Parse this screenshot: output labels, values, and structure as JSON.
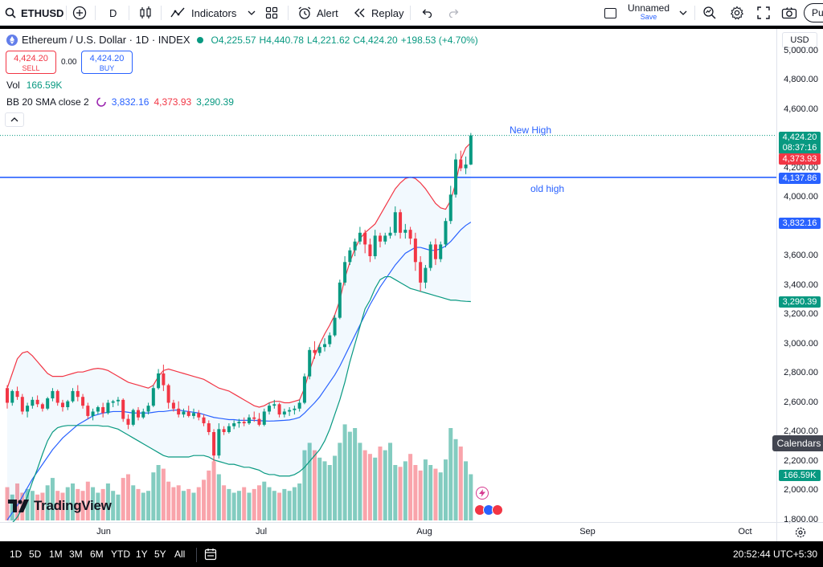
{
  "toolbar": {
    "symbol": "ETHUSD",
    "interval": "D",
    "indicators_label": "Indicators",
    "alert_label": "Alert",
    "replay_label": "Replay",
    "layout_name": "Unnamed",
    "layout_status": "Save",
    "publish_label": "Pu"
  },
  "legend": {
    "title": "Ethereum / U.S. Dollar · 1D · INDEX",
    "open": "O4,225.57",
    "high": "H4,440.78",
    "low": "L4,221.62",
    "close": "C4,424.20",
    "change": "+198.53 (+4.70%)",
    "sell_price": "4,424.20",
    "sell_label": "SELL",
    "spread": "0.00",
    "buy_price": "4,424.20",
    "buy_label": "BUY",
    "vol_label": "Vol",
    "vol_value": "166.59K",
    "bb_label": "BB 20 SMA close 2",
    "bb_mid": "3,832.16",
    "bb_upper": "4,373.93",
    "bb_lower": "3,290.39",
    "collapse_icon": "chevron-up-icon"
  },
  "currency": "USD",
  "annotations": {
    "new_high": "New High",
    "old_high": "old high"
  },
  "price_axis": {
    "ticks": [
      "5,000.00",
      "4,800.00",
      "4,600.00",
      "4,200.00",
      "4,000.00",
      "3,600.00",
      "3,400.00",
      "3,200.00",
      "3,000.00",
      "2,800.00",
      "2,600.00",
      "2,400.00",
      "2,200.00",
      "2,000.00",
      "1,800.00"
    ],
    "tags": {
      "last_price": "4,424.20",
      "countdown": "08:37:16",
      "bb_upper": "4,373.93",
      "old_high": "4,137.86",
      "bb_mid": "3,832.16",
      "bb_lower": "3,290.39",
      "volume": "166.59K"
    },
    "calendars_label": "Calendars"
  },
  "time_axis": {
    "labels": [
      "Jun",
      "Jul",
      "Aug",
      "Sep",
      "Oct"
    ]
  },
  "watermark": "TradingView",
  "bottombar": {
    "ranges": [
      "1D",
      "5D",
      "1M",
      "3M",
      "6M",
      "YTD",
      "1Y",
      "5Y",
      "All"
    ],
    "clock": "20:52:44 UTC+5:30"
  },
  "colors": {
    "up": "#089981",
    "down": "#f23645",
    "bb_mid": "#2962ff",
    "bb_upper": "#f23645",
    "bb_lower": "#089981",
    "level_line": "#2962ff"
  },
  "chart_data": {
    "type": "candlestick",
    "symbol": "ETHUSD",
    "timeframe": "1D",
    "ylim": [
      1800,
      5000
    ],
    "y_scale": "linear",
    "grid": false,
    "horizontal_level": 4137.86,
    "candles": [
      [
        2700,
        2720,
        2560,
        2600
      ],
      [
        2600,
        2690,
        2580,
        2680
      ],
      [
        2680,
        2710,
        2620,
        2640
      ],
      [
        2640,
        2660,
        2520,
        2540
      ],
      [
        2540,
        2600,
        2500,
        2580
      ],
      [
        2580,
        2640,
        2560,
        2620
      ],
      [
        2620,
        2650,
        2570,
        2590
      ],
      [
        2590,
        2600,
        2540,
        2560
      ],
      [
        2560,
        2640,
        2550,
        2630
      ],
      [
        2630,
        2700,
        2610,
        2680
      ],
      [
        2680,
        2690,
        2580,
        2600
      ],
      [
        2600,
        2620,
        2540,
        2570
      ],
      [
        2570,
        2620,
        2550,
        2610
      ],
      [
        2610,
        2700,
        2600,
        2680
      ],
      [
        2680,
        2720,
        2610,
        2640
      ],
      [
        2640,
        2660,
        2560,
        2580
      ],
      [
        2580,
        2600,
        2490,
        2510
      ],
      [
        2510,
        2560,
        2480,
        2540
      ],
      [
        2540,
        2580,
        2520,
        2570
      ],
      [
        2570,
        2600,
        2500,
        2530
      ],
      [
        2530,
        2620,
        2520,
        2600
      ],
      [
        2600,
        2620,
        2570,
        2610
      ],
      [
        2610,
        2640,
        2580,
        2620
      ],
      [
        2620,
        2630,
        2470,
        2490
      ],
      [
        2490,
        2520,
        2420,
        2450
      ],
      [
        2450,
        2560,
        2440,
        2550
      ],
      [
        2550,
        2570,
        2480,
        2500
      ],
      [
        2500,
        2560,
        2490,
        2540
      ],
      [
        2540,
        2600,
        2520,
        2580
      ],
      [
        2580,
        2720,
        2570,
        2700
      ],
      [
        2700,
        2830,
        2690,
        2800
      ],
      [
        2800,
        2860,
        2680,
        2720
      ],
      [
        2720,
        2730,
        2560,
        2600
      ],
      [
        2600,
        2620,
        2540,
        2560
      ],
      [
        2560,
        2610,
        2500,
        2520
      ],
      [
        2520,
        2560,
        2500,
        2540
      ],
      [
        2540,
        2580,
        2500,
        2510
      ],
      [
        2510,
        2560,
        2490,
        2530
      ],
      [
        2530,
        2550,
        2480,
        2500
      ],
      [
        2500,
        2520,
        2440,
        2460
      ],
      [
        2460,
        2480,
        2380,
        2400
      ],
      [
        2400,
        2420,
        2200,
        2240
      ],
      [
        2240,
        2460,
        2220,
        2420
      ],
      [
        2420,
        2440,
        2380,
        2400
      ],
      [
        2400,
        2460,
        2390,
        2440
      ],
      [
        2440,
        2480,
        2420,
        2460
      ],
      [
        2460,
        2490,
        2430,
        2470
      ],
      [
        2470,
        2500,
        2440,
        2460
      ],
      [
        2460,
        2520,
        2450,
        2500
      ],
      [
        2500,
        2540,
        2470,
        2490
      ],
      [
        2490,
        2530,
        2440,
        2450
      ],
      [
        2450,
        2560,
        2440,
        2540
      ],
      [
        2540,
        2600,
        2520,
        2580
      ],
      [
        2580,
        2620,
        2560,
        2590
      ],
      [
        2590,
        2600,
        2500,
        2520
      ],
      [
        2520,
        2560,
        2500,
        2540
      ],
      [
        2540,
        2570,
        2510,
        2550
      ],
      [
        2550,
        2580,
        2520,
        2560
      ],
      [
        2560,
        2620,
        2540,
        2600
      ],
      [
        2600,
        2800,
        2590,
        2780
      ],
      [
        2780,
        2980,
        2760,
        2960
      ],
      [
        2960,
        3020,
        2900,
        2940
      ],
      [
        2940,
        3000,
        2920,
        2980
      ],
      [
        2980,
        3040,
        2950,
        3000
      ],
      [
        3000,
        3080,
        2980,
        3060
      ],
      [
        3060,
        3200,
        3050,
        3180
      ],
      [
        3180,
        3440,
        3170,
        3420
      ],
      [
        3420,
        3600,
        3400,
        3560
      ],
      [
        3560,
        3660,
        3540,
        3640
      ],
      [
        3640,
        3720,
        3600,
        3700
      ],
      [
        3700,
        3800,
        3680,
        3760
      ],
      [
        3760,
        3780,
        3620,
        3680
      ],
      [
        3680,
        3720,
        3560,
        3600
      ],
      [
        3600,
        3780,
        3580,
        3740
      ],
      [
        3740,
        3760,
        3660,
        3700
      ],
      [
        3700,
        3760,
        3680,
        3740
      ],
      [
        3740,
        3800,
        3720,
        3760
      ],
      [
        3760,
        3940,
        3740,
        3900
      ],
      [
        3900,
        3920,
        3720,
        3760
      ],
      [
        3760,
        3820,
        3720,
        3780
      ],
      [
        3780,
        3800,
        3680,
        3720
      ],
      [
        3720,
        3760,
        3500,
        3560
      ],
      [
        3560,
        3600,
        3360,
        3420
      ],
      [
        3420,
        3540,
        3380,
        3520
      ],
      [
        3520,
        3700,
        3500,
        3680
      ],
      [
        3680,
        3720,
        3540,
        3580
      ],
      [
        3580,
        3700,
        3560,
        3680
      ],
      [
        3680,
        3860,
        3660,
        3840
      ],
      [
        3840,
        4080,
        3820,
        4020
      ],
      [
        4020,
        4300,
        4000,
        4260
      ],
      [
        4260,
        4320,
        4180,
        4200
      ],
      [
        4200,
        4280,
        4160,
        4225.57
      ],
      [
        4225.57,
        4440.78,
        4221.62,
        4424.2
      ]
    ],
    "volume": [
      180,
      140,
      200,
      150,
      170,
      160,
      140,
      150,
      190,
      230,
      160,
      150,
      180,
      200,
      170,
      160,
      210,
      180,
      150,
      170,
      200,
      160,
      140,
      230,
      250,
      190,
      170,
      150,
      160,
      260,
      300,
      280,
      210,
      180,
      190,
      160,
      170,
      150,
      180,
      220,
      270,
      320,
      250,
      190,
      170,
      150,
      160,
      180,
      150,
      170,
      190,
      210,
      180,
      160,
      150,
      170,
      160,
      180,
      200,
      380,
      420,
      380,
      340,
      320,
      300,
      350,
      420,
      520,
      480,
      500,
      420,
      380,
      360,
      340,
      400,
      380,
      420,
      300,
      290,
      320,
      360,
      300,
      270,
      330,
      300,
      280,
      260,
      330,
      500,
      440,
      400,
      320,
      250
    ],
    "bb_upper": [
      2700,
      2800,
      2900,
      2940,
      2950,
      2920,
      2880,
      2840,
      2800,
      2780,
      2780,
      2780,
      2790,
      2800,
      2810,
      2810,
      2820,
      2830,
      2835,
      2830,
      2820,
      2800,
      2780,
      2760,
      2740,
      2730,
      2720,
      2710,
      2700,
      2720,
      2780,
      2820,
      2830,
      2820,
      2810,
      2800,
      2790,
      2780,
      2770,
      2760,
      2740,
      2720,
      2700,
      2690,
      2680,
      2660,
      2640,
      2620,
      2600,
      2580,
      2570,
      2580,
      2600,
      2610,
      2610,
      2600,
      2600,
      2610,
      2620,
      2700,
      2820,
      2920,
      3000,
      3070,
      3130,
      3200,
      3300,
      3450,
      3560,
      3650,
      3720,
      3760,
      3790,
      3820,
      3880,
      3940,
      4000,
      4060,
      4100,
      4130,
      4140,
      4130,
      4100,
      4060,
      4010,
      3960,
      3930,
      3920,
      3980,
      4100,
      4260,
      4340,
      4373.93
    ],
    "bb_middle": [
      1800,
      1850,
      1900,
      1960,
      2020,
      2080,
      2130,
      2180,
      2230,
      2280,
      2320,
      2360,
      2390,
      2420,
      2450,
      2470,
      2490,
      2510,
      2520,
      2530,
      2535,
      2540,
      2540,
      2540,
      2535,
      2530,
      2530,
      2530,
      2530,
      2535,
      2540,
      2540,
      2545,
      2550,
      2550,
      2545,
      2540,
      2535,
      2530,
      2520,
      2510,
      2500,
      2495,
      2490,
      2485,
      2485,
      2480,
      2480,
      2480,
      2480,
      2478,
      2476,
      2475,
      2476,
      2478,
      2480,
      2483,
      2490,
      2500,
      2530,
      2565,
      2600,
      2640,
      2690,
      2740,
      2790,
      2850,
      2920,
      2990,
      3060,
      3130,
      3200,
      3270,
      3330,
      3390,
      3440,
      3490,
      3540,
      3580,
      3620,
      3640,
      3660,
      3660,
      3650,
      3640,
      3640,
      3650,
      3670,
      3700,
      3740,
      3780,
      3810,
      3832.16
    ],
    "bb_lower": [
      1750,
      1780,
      1820,
      1880,
      1960,
      2060,
      2150,
      2250,
      2340,
      2400,
      2430,
      2440,
      2445,
      2445,
      2445,
      2445,
      2445,
      2445,
      2445,
      2440,
      2440,
      2430,
      2420,
      2400,
      2380,
      2360,
      2340,
      2320,
      2300,
      2280,
      2260,
      2240,
      2230,
      2230,
      2230,
      2230,
      2230,
      2240,
      2240,
      2240,
      2230,
      2210,
      2200,
      2190,
      2180,
      2180,
      2170,
      2160,
      2160,
      2150,
      2140,
      2120,
      2110,
      2110,
      2100,
      2100,
      2100,
      2110,
      2130,
      2160,
      2200,
      2240,
      2280,
      2340,
      2420,
      2520,
      2620,
      2740,
      2880,
      3000,
      3120,
      3240,
      3300,
      3380,
      3440,
      3460,
      3460,
      3440,
      3420,
      3400,
      3380,
      3370,
      3360,
      3350,
      3340,
      3330,
      3320,
      3310,
      3300,
      3300,
      3295,
      3292,
      3290.39
    ]
  }
}
